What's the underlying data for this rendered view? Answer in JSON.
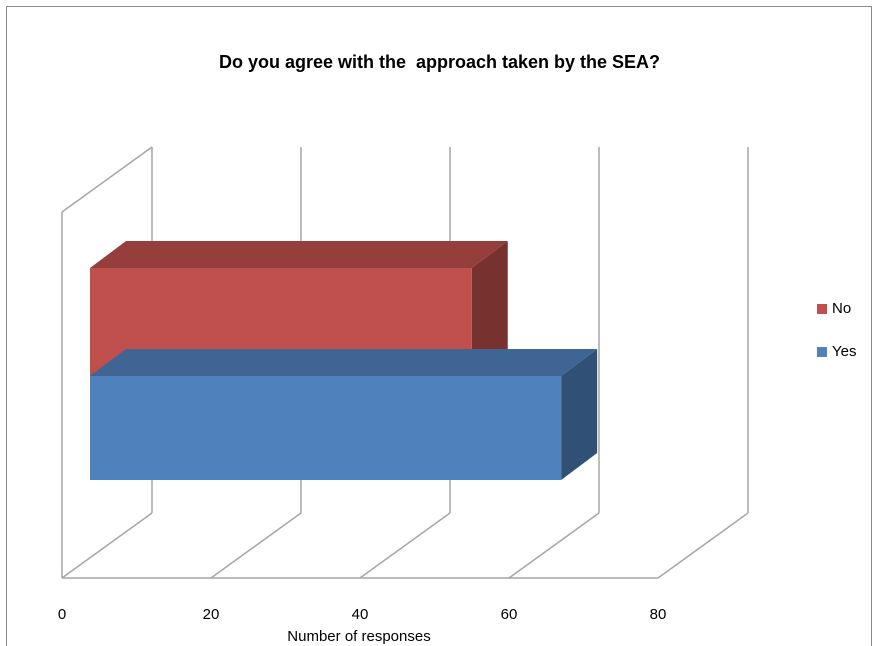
{
  "chart_data": {
    "type": "bar",
    "orientation": "horizontal",
    "style": "3d",
    "title": "Do you agree with the  approach taken by the SEA?",
    "xlabel": "Number  of responses",
    "ylabel": "",
    "xlim": [
      0,
      80
    ],
    "x_ticks": [
      0,
      20,
      40,
      60,
      80
    ],
    "grid": true,
    "legend_position": "right",
    "series": [
      {
        "name": "No",
        "value": 55,
        "color": "#C0504D"
      },
      {
        "name": "Yes",
        "value": 67,
        "color": "#4F81BD"
      }
    ]
  }
}
